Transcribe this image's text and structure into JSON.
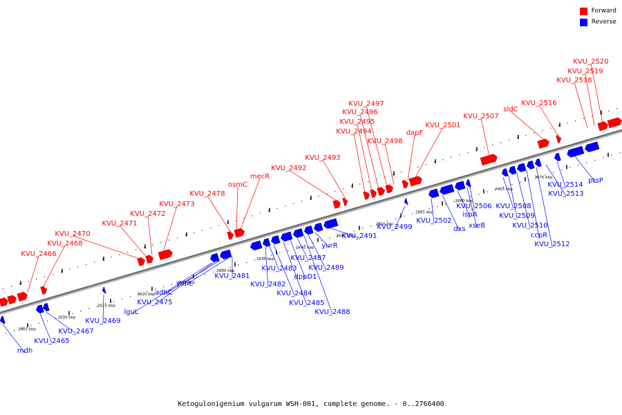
{
  "legend": {
    "forward_label": "Forward",
    "reverse_label": "Reverse",
    "forward_color": "#ff0000",
    "reverse_color": "#0000ff"
  },
  "caption": "Ketogulonigenium vulgarum WSH-001, complete genome. - 0..2766400",
  "scale_labels": [
    "2605 kbp",
    "2610 kbp",
    "2615 kbp",
    "2620 kbp",
    "2625 kbp",
    "2630 kbp",
    "2635 kbp",
    "2640 kbp",
    "2645 kbp",
    "2650 kbp",
    "2655 kbp",
    "2660 kbp",
    "2665 kbp",
    "2670 kbp"
  ],
  "forward_genes": [
    "KVU_2466",
    "KVU_2468",
    "KVU_2470",
    "KVU_2471",
    "KVU_2472",
    "KVU_2473",
    "KVU_2478",
    "osmC",
    "mecR",
    "KVU_2492",
    "KVU_2493",
    "KVU_2494",
    "KVU_2495",
    "KVU_2496",
    "KVU_2497",
    "KVU_2498",
    "dapF",
    "KVU_2501",
    "KVU_2507",
    "sldC",
    "KVU_2516",
    "KVU_2518",
    "KVU_2519",
    "KVU_2520"
  ],
  "reverse_genes": [
    "mdh",
    "KVU_2465",
    "KVU_2467",
    "KVU_2469",
    "lguL",
    "KVU_2475",
    "adhC",
    "yohL",
    "KVU_2481",
    "KVU_2482",
    "KVU_2483",
    "KVU_2484",
    "KVU_2485",
    "dppD1",
    "KVU_2487",
    "KVU_2488",
    "KVU_2489",
    "yurR",
    "KVU_2491",
    "KVU_2499",
    "KVU_2502",
    "dxs",
    "ispA",
    "xseB",
    "KVU_2506",
    "KVU_2508",
    "KVU_2509",
    "KVU_2510",
    "ccpR",
    "KVU_2512",
    "KVU_2513",
    "KVU_2514",
    "ptsP"
  ]
}
